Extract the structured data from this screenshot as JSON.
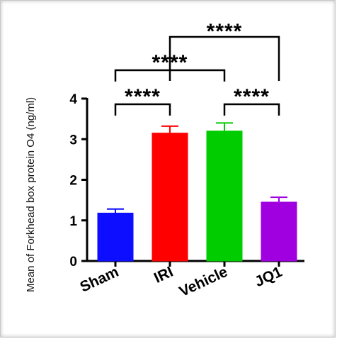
{
  "chart_data": {
    "type": "bar",
    "title": "",
    "ylabel": "Mean of Forkhead box protein O4 (ng/ml)",
    "xlabel": "",
    "ylim": [
      0,
      4
    ],
    "yticks": [
      "0",
      "1",
      "2",
      "3",
      "4"
    ],
    "categories": [
      "Sham",
      "IRI",
      "Vehicle",
      "JQ1"
    ],
    "values": [
      1.18,
      3.15,
      3.2,
      1.45
    ],
    "errors": [
      0.1,
      0.17,
      0.2,
      0.12
    ],
    "colors": [
      "#0d0dff",
      "#ff0000",
      "#00cc00",
      "#a000e0"
    ],
    "grid": false,
    "significance": [
      {
        "from": 0,
        "to": 1,
        "label": "****"
      },
      {
        "from": 2,
        "to": 3,
        "label": "****"
      },
      {
        "from": 0,
        "to": 2,
        "label": "****"
      },
      {
        "from": 1,
        "to": 3,
        "label": "****"
      }
    ]
  }
}
